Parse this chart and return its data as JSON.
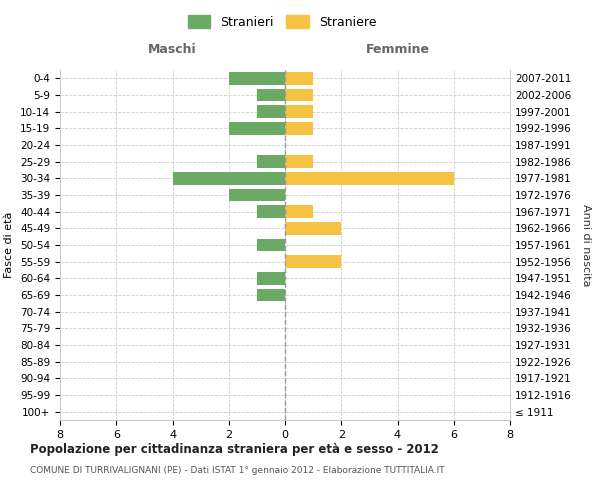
{
  "age_groups": [
    "100+",
    "95-99",
    "90-94",
    "85-89",
    "80-84",
    "75-79",
    "70-74",
    "65-69",
    "60-64",
    "55-59",
    "50-54",
    "45-49",
    "40-44",
    "35-39",
    "30-34",
    "25-29",
    "20-24",
    "15-19",
    "10-14",
    "5-9",
    "0-4"
  ],
  "birth_years": [
    "≤ 1911",
    "1912-1916",
    "1917-1921",
    "1922-1926",
    "1927-1931",
    "1932-1936",
    "1937-1941",
    "1942-1946",
    "1947-1951",
    "1952-1956",
    "1957-1961",
    "1962-1966",
    "1967-1971",
    "1972-1976",
    "1977-1981",
    "1982-1986",
    "1987-1991",
    "1992-1996",
    "1997-2001",
    "2002-2006",
    "2007-2011"
  ],
  "males": [
    0,
    0,
    0,
    0,
    0,
    0,
    0,
    1,
    1,
    0,
    1,
    0,
    1,
    2,
    4,
    1,
    0,
    2,
    1,
    1,
    2
  ],
  "females": [
    0,
    0,
    0,
    0,
    0,
    0,
    0,
    0,
    0,
    2,
    0,
    2,
    1,
    0,
    6,
    1,
    0,
    1,
    1,
    1,
    1
  ],
  "male_color": "#6aaa64",
  "female_color": "#f5c242",
  "grid_color": "#cccccc",
  "zero_line_color": "#999999",
  "background_color": "#ffffff",
  "title": "Popolazione per cittadinanza straniera per età e sesso - 2012",
  "subtitle": "COMUNE DI TURRIVALIGNANI (PE) - Dati ISTAT 1° gennaio 2012 - Elaborazione TUTTITALIA.IT",
  "xlabel_left": "Maschi",
  "xlabel_right": "Femmine",
  "ylabel_left": "Fasce di età",
  "ylabel_right": "Anni di nascita",
  "legend_male": "Stranieri",
  "legend_female": "Straniere",
  "xlim": 8,
  "bar_height": 0.75
}
